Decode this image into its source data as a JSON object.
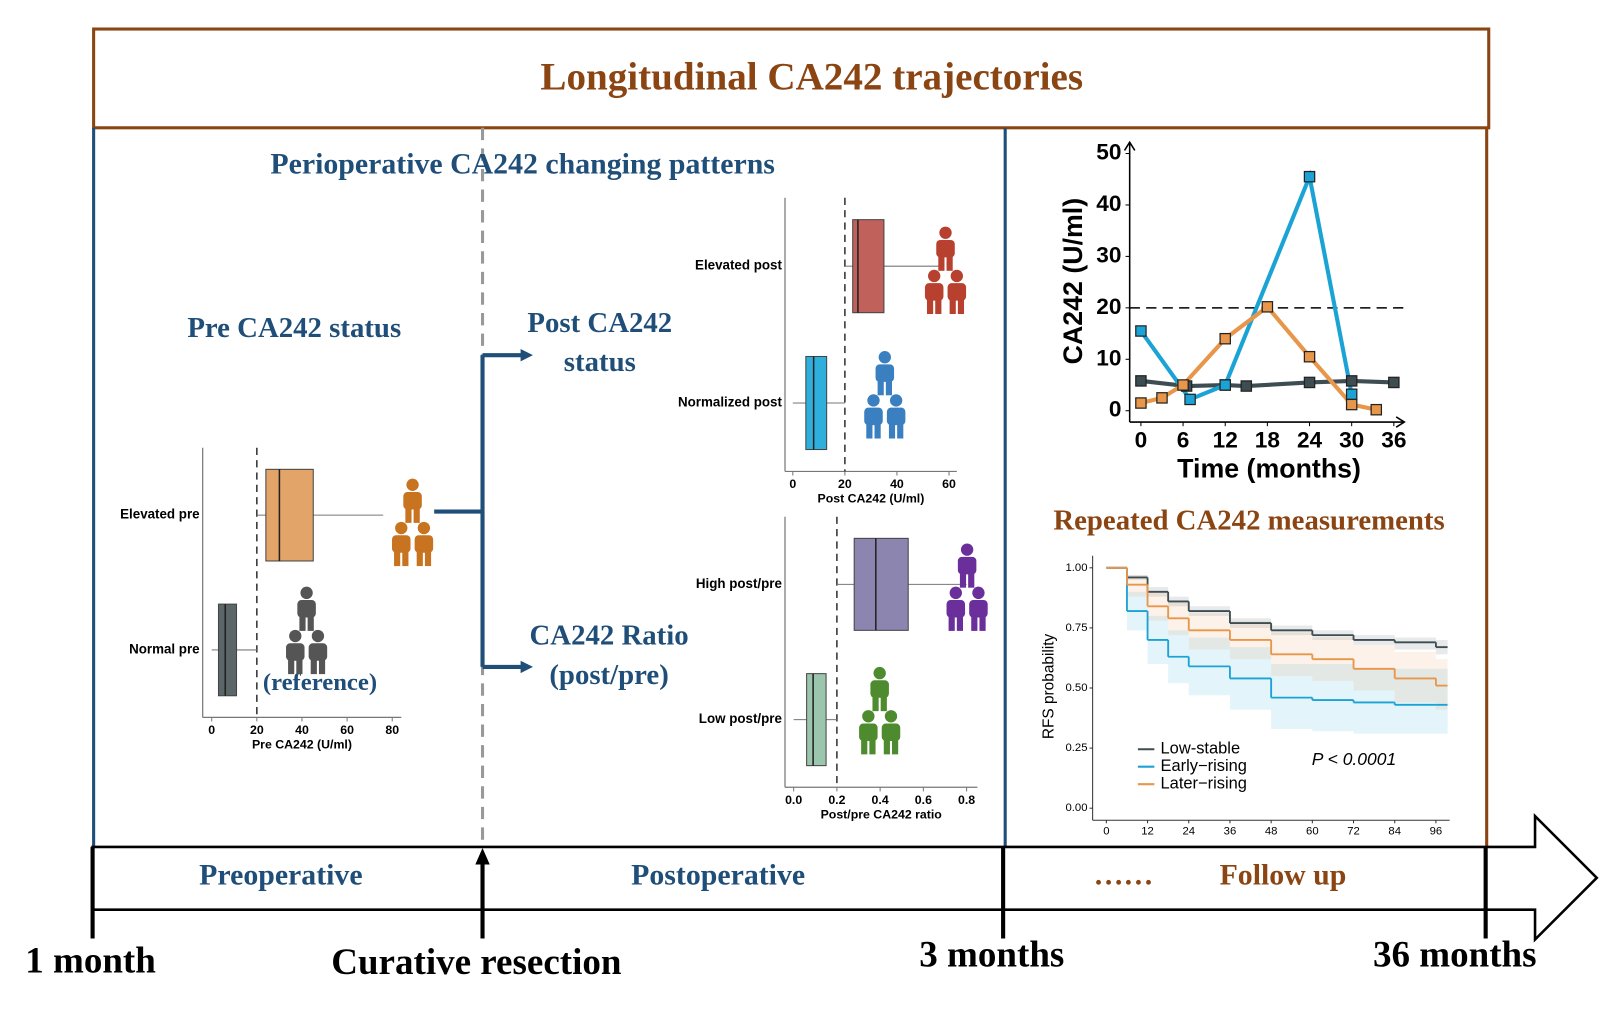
{
  "header": {
    "title": "Longitudinal CA242 trajectories"
  },
  "perioperative": {
    "title": "Perioperative CA242 changing patterns",
    "pre_status": "Pre CA242 status",
    "post_status": [
      "Post CA242",
      "status"
    ],
    "ratio_status": [
      "CA242 Ratio",
      "(post/pre)"
    ],
    "reference": "(reference)"
  },
  "chart_data": [
    {
      "type": "boxplot",
      "orientation": "horizontal",
      "categories": [
        "Elevated pre",
        "Normal pre"
      ],
      "boxes": [
        {
          "whisker_low": 20,
          "q1": 24,
          "median": 30,
          "q3": 45,
          "whisker_high": 76,
          "color": "#e3a46a",
          "icon_color": "#c8731f"
        },
        {
          "whisker_low": 0,
          "q1": 3,
          "median": 6,
          "q3": 11,
          "whisker_high": 20,
          "color": "#5b6668",
          "icon_color": "#555555"
        }
      ],
      "cutoff": 20,
      "xlabel": "Pre CA242 (U/ml)",
      "xlim": [
        -4,
        84
      ],
      "xticks": [
        0,
        20,
        40,
        60,
        80
      ]
    },
    {
      "type": "boxplot",
      "orientation": "horizontal",
      "categories": [
        "Elevated post",
        "Normalized post"
      ],
      "boxes": [
        {
          "whisker_low": 20,
          "q1": 23,
          "median": 25,
          "q3": 35,
          "whisker_high": 58,
          "color": "#c0615c",
          "icon_color": "#b8402e"
        },
        {
          "whisker_low": 0,
          "q1": 5,
          "median": 8,
          "q3": 13,
          "whisker_high": 20,
          "color": "#2fb0dc",
          "icon_color": "#3a7fc0"
        }
      ],
      "cutoff": 20,
      "xlabel": "Post CA242 (U/ml)",
      "xlim": [
        -3,
        63
      ],
      "xticks": [
        0,
        20,
        40,
        60
      ]
    },
    {
      "type": "boxplot",
      "orientation": "horizontal",
      "categories": [
        "High post/pre",
        "Low post/pre"
      ],
      "boxes": [
        {
          "whisker_low": 0.2,
          "q1": 0.28,
          "median": 0.38,
          "q3": 0.53,
          "whisker_high": 0.8,
          "color": "#8b85b0",
          "icon_color": "#6a2f9a"
        },
        {
          "whisker_low": 0,
          "q1": 0.06,
          "median": 0.09,
          "q3": 0.15,
          "whisker_high": 0.2,
          "color": "#9cc5ad",
          "icon_color": "#4e8a2e"
        }
      ],
      "cutoff": 0.2,
      "xlabel": "Post/pre CA242 ratio",
      "xlim": [
        -0.04,
        0.85
      ],
      "xticks": [
        {
          "value": 0,
          "label": "0.0"
        },
        0.2,
        0.4,
        0.6,
        0.8
      ]
    },
    {
      "type": "line",
      "xlabel": "Time (months)",
      "ylabel": "CA242 (U/ml)",
      "series": [
        {
          "color": "#3d4d52",
          "x": [
            0,
            6.5,
            12,
            15,
            24,
            30,
            36
          ],
          "values": [
            5.8,
            4.8,
            5,
            4.8,
            5.5,
            5.8,
            5.5
          ]
        },
        {
          "color": "#1ca3d6",
          "x": [
            0,
            7,
            12,
            24,
            30
          ],
          "values": [
            15.5,
            2.2,
            5,
            45.5,
            3.2
          ]
        },
        {
          "color": "#e8964a",
          "x": [
            0,
            3,
            6,
            12,
            18,
            24,
            30,
            33.5
          ],
          "values": [
            1.5,
            2.5,
            5,
            14,
            20.2,
            10.5,
            1.2,
            0.2
          ]
        }
      ],
      "hline": 20,
      "xlim": [
        -1.6,
        37.5
      ],
      "xticks": [
        0,
        6,
        12,
        18,
        24,
        30,
        36
      ],
      "ylim": [
        -2.2,
        52.2
      ],
      "yticks": [
        0,
        10,
        20,
        30,
        40,
        50
      ]
    },
    {
      "type": "step",
      "title": "Repeated CA242 measurements",
      "ylabel": "RFS probability",
      "annotation": "P < 0.0001",
      "legend": "lower-left",
      "series": [
        {
          "name": "Low-stable",
          "color": "#3d4d52",
          "x": [
            0,
            6,
            12,
            18,
            24,
            36,
            48,
            60,
            72,
            84,
            96
          ],
          "values": [
            1,
            0.96,
            0.9,
            0.86,
            0.82,
            0.77,
            0.74,
            0.72,
            0.7,
            0.69,
            0.67
          ],
          "lower": [
            1,
            0.95,
            0.88,
            0.84,
            0.8,
            0.75,
            0.72,
            0.7,
            0.68,
            0.66,
            0.64
          ],
          "upper": [
            1,
            0.97,
            0.92,
            0.88,
            0.84,
            0.79,
            0.76,
            0.74,
            0.72,
            0.71,
            0.7
          ]
        },
        {
          "name": "Early−rising",
          "color": "#1ca3d6",
          "x": [
            0,
            6,
            12,
            18,
            24,
            36,
            48,
            60,
            72,
            84,
            96
          ],
          "values": [
            1,
            0.82,
            0.7,
            0.63,
            0.59,
            0.54,
            0.46,
            0.45,
            0.44,
            0.43,
            0.43
          ],
          "lower": [
            1,
            0.74,
            0.6,
            0.52,
            0.47,
            0.41,
            0.33,
            0.32,
            0.31,
            0.31,
            0.31
          ],
          "upper": [
            1,
            0.9,
            0.8,
            0.74,
            0.71,
            0.67,
            0.6,
            0.6,
            0.58,
            0.58,
            0.58
          ]
        },
        {
          "name": "Later−rising",
          "color": "#e8964a",
          "x": [
            0,
            6,
            12,
            18,
            24,
            36,
            48,
            60,
            72,
            84,
            96
          ],
          "values": [
            1,
            0.93,
            0.84,
            0.79,
            0.74,
            0.7,
            0.64,
            0.62,
            0.58,
            0.54,
            0.51
          ],
          "lower": [
            1,
            0.88,
            0.78,
            0.72,
            0.66,
            0.62,
            0.55,
            0.53,
            0.49,
            0.44,
            0.41
          ],
          "upper": [
            1,
            0.97,
            0.9,
            0.86,
            0.81,
            0.78,
            0.73,
            0.71,
            0.68,
            0.65,
            0.62
          ]
        }
      ],
      "xlim": [
        -4,
        100
      ],
      "xticks": [
        0,
        12,
        24,
        36,
        48,
        60,
        72,
        84,
        96
      ],
      "ylim": [
        -0.05,
        1.05
      ],
      "yticks": [
        {
          "value": 0,
          "label": "0.00"
        },
        {
          "value": 0.25,
          "label": "0.25"
        },
        {
          "value": 0.5,
          "label": "0.50"
        },
        {
          "value": 0.75,
          "label": "0.75"
        },
        {
          "value": 1,
          "label": "1.00"
        }
      ]
    }
  ],
  "timeline": {
    "phases": [
      "Preoperative",
      "Postoperative",
      "……",
      "Follow up"
    ],
    "timepoints": [
      "1 month",
      "Curative resection",
      "3 months",
      "36 months"
    ]
  }
}
